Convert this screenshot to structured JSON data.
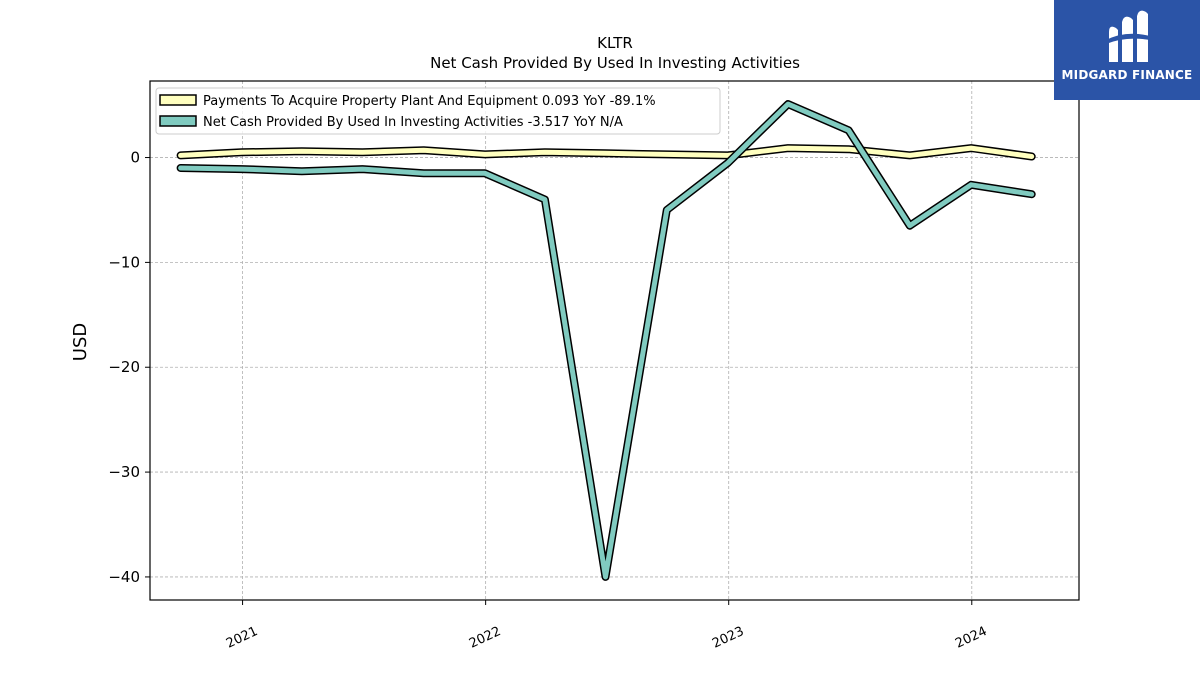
{
  "brand": {
    "name": "MIDGARD FINANCE",
    "logo_bg": "#2b54a7",
    "icon": "midgard-m-logo-icon"
  },
  "chart_data": {
    "type": "line",
    "title": "KLTR",
    "subtitle": "Net Cash Provided By Used In Investing Activities",
    "ylabel": "USD",
    "xlabel": "",
    "ylim": [
      -42.2,
      7.3
    ],
    "xlim": [
      "2020-08-15",
      "2024-06-10"
    ],
    "yticks": [
      0,
      -10,
      -20,
      -30,
      -40
    ],
    "ytick_labels": [
      "0",
      "−10",
      "−20",
      "−30",
      "−40"
    ],
    "xticks": [
      "2021-01-01",
      "2022-01-01",
      "2023-01-01",
      "2024-01-01"
    ],
    "xtick_labels": [
      "2021",
      "2022",
      "2023",
      "2024"
    ],
    "grid": true,
    "legend_position": "top-left",
    "x": [
      "2020-09-30",
      "2020-12-31",
      "2021-03-31",
      "2021-06-30",
      "2021-09-30",
      "2021-12-31",
      "2022-03-31",
      "2022-06-30",
      "2022-09-30",
      "2022-12-31",
      "2023-03-31",
      "2023-06-30",
      "2023-09-30",
      "2023-12-31",
      "2024-03-31"
    ],
    "series": [
      {
        "name": "Payments To Acquire Property Plant And Equipment",
        "legend_label": "Payments To Acquire Property Plant And Equipment  0.093 YoY -89.1%",
        "color": "#ffffbf",
        "values": [
          0.2,
          0.5,
          0.6,
          0.5,
          0.7,
          0.3,
          0.5,
          0.4,
          0.3,
          0.2,
          0.9,
          0.8,
          0.2,
          0.9,
          0.1
        ]
      },
      {
        "name": "Net Cash Provided By Used In Investing Activities",
        "legend_label": "Net Cash Provided By Used In Investing Activities  -3.517 YoY N/A",
        "color": "#80cbc0",
        "values": [
          -1.0,
          -1.1,
          -1.3,
          -1.1,
          -1.5,
          -1.5,
          -4.0,
          -40.0,
          -5.0,
          -0.5,
          5.1,
          2.6,
          -6.5,
          -2.6,
          -3.5
        ]
      }
    ]
  }
}
